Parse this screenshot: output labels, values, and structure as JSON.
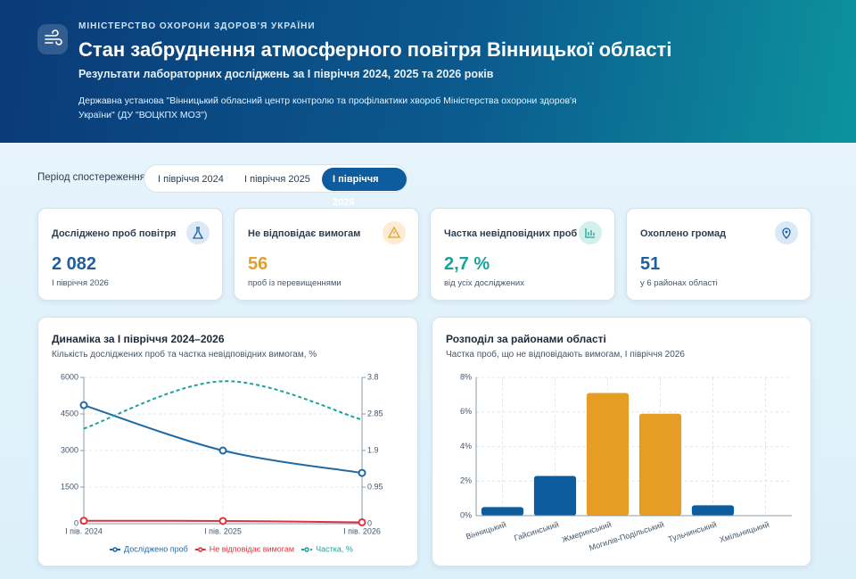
{
  "header": {
    "org": "МІНІСТЕРСТВО ОХОРОНИ ЗДОРОВ'Я УКРАЇНИ",
    "title": "Стан забруднення атмосферного повітря Вінницької області",
    "subtitle": "Результати лабораторних досліджень за І півріччя 2024, 2025 та 2026 років",
    "source": "Державна установа \"Вінницький обласний центр контролю та профілактики хвороб Міністерства охорони здоров'я України\" (ДУ \"ВОЦКПХ МОЗ\")"
  },
  "period": {
    "label": "Період спостереження:",
    "tabs": [
      "І півріччя 2024",
      "І півріччя 2025",
      "І півріччя 2026"
    ]
  },
  "kpis": [
    {
      "label": "Досліджено проб повітря",
      "value": "2 082",
      "note": "І півріччя 2026"
    },
    {
      "label": "Не відповідає вимогам",
      "value": "56",
      "note": "проб із перевищеннями"
    },
    {
      "label": "Частка невідповідних проб",
      "value": "2,7 %",
      "note": "від усіх досліджених"
    },
    {
      "label": "Охоплено громад",
      "value": "51",
      "note": "у 6 районах області"
    }
  ],
  "chart_data": [
    {
      "type": "line",
      "title": "Динаміка за І півріччя 2024–2026",
      "subtitle": "Кількість досліджених проб та частка невідповідних вимогам, %",
      "categories": [
        "І пів. 2024",
        "І пів. 2025",
        "І пів. 2026"
      ],
      "series": [
        {
          "name": "Досліджено проб",
          "color": "#1f6aa5",
          "values": [
            4860,
            3000,
            2082
          ]
        },
        {
          "name": "Не відповідає вимогам",
          "color": "#d9363e",
          "values": [
            120,
            111,
            56
          ]
        },
        {
          "name": "Частка, %",
          "color": "#1aa39a",
          "values": [
            2.47,
            3.7,
            2.7
          ],
          "axis": "y2",
          "dashed": true
        }
      ],
      "ylim": [
        0,
        6000
      ],
      "yticks": [
        0,
        1500,
        3000,
        4500,
        6000
      ],
      "y2lim": [
        0,
        3.8
      ],
      "y2ticks": [
        0,
        0.95,
        1.9,
        2.85,
        3.8
      ],
      "grid": true,
      "legend": "bottom"
    },
    {
      "type": "bar",
      "title": "Розподіл за районами області",
      "subtitle": "Частка проб, що не відповідають вимогам, І півріччя 2026",
      "categories": [
        "Вінницький",
        "Гайсинський",
        "Жмеринський",
        "Могилів-Подільський",
        "Тульчинський",
        "Хмільницький"
      ],
      "values": [
        0.5,
        2.3,
        7.1,
        5.9,
        0.6,
        0
      ],
      "colors": [
        "#0d5c9e",
        "#0d5c9e",
        "#e59d24",
        "#e59d24",
        "#0d5c9e",
        "#0d5c9e"
      ],
      "ylim": [
        0,
        8
      ],
      "yticks": [
        {
          "value": 0,
          "label": "0%"
        },
        {
          "value": 2,
          "label": "2%"
        },
        {
          "value": 4,
          "label": "4%"
        },
        {
          "value": 6,
          "label": "6%"
        },
        {
          "value": 8,
          "label": "8%"
        }
      ],
      "grid": true
    }
  ]
}
